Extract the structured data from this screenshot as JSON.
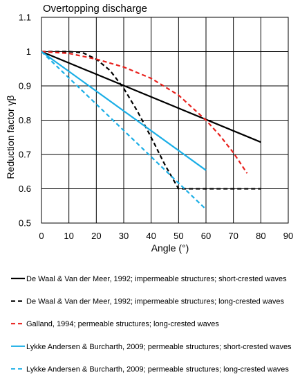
{
  "chart_data": {
    "type": "line",
    "title": "Overtopping discharge",
    "xlabel": "Angle (°)",
    "ylabel": "Reduction factor γβ",
    "xlim": [
      0,
      90
    ],
    "ylim": [
      0.5,
      1.1
    ],
    "xticks": [
      0,
      10,
      20,
      30,
      40,
      50,
      60,
      70,
      80,
      90
    ],
    "yticks": [
      0.5,
      0.6,
      0.7,
      0.8,
      0.9,
      1,
      1.1
    ],
    "grid": true,
    "legend_position": "below",
    "series": [
      {
        "name": "De Waal & Van der Meer, 1992; impermeable structures; short-crested waves",
        "color": "#000000",
        "dash": "solid",
        "x": [
          0,
          80
        ],
        "y": [
          1.0,
          0.736
        ]
      },
      {
        "name": "De Waal & Van der Meer, 1992; impermeable structures; long-crested waves",
        "color": "#000000",
        "dash": "dashed",
        "x": [
          0,
          10,
          15,
          20,
          25,
          30,
          35,
          40,
          45,
          50,
          60,
          80
        ],
        "y": [
          1.0,
          1.0,
          0.997,
          0.978,
          0.945,
          0.893,
          0.826,
          0.75,
          0.67,
          0.6,
          0.6,
          0.6
        ]
      },
      {
        "name": "Galland, 1994; permeable structures; long-crested waves",
        "color": "#e8201c",
        "dash": "dashed",
        "x": [
          0,
          10,
          20,
          30,
          40,
          50,
          60,
          65,
          70,
          75
        ],
        "y": [
          1.0,
          0.995,
          0.978,
          0.955,
          0.922,
          0.873,
          0.8,
          0.756,
          0.705,
          0.645
        ]
      },
      {
        "name": "Lykke Andersen & Burcharth, 2009; permeable structures; short-crested waves",
        "color": "#1aaee6",
        "dash": "solid",
        "x": [
          0,
          60
        ],
        "y": [
          1.0,
          0.654
        ]
      },
      {
        "name": "Lykke Andersen & Burcharth, 2009; permeable structures; long-crested waves",
        "color": "#1aaee6",
        "dash": "dashed",
        "x": [
          0,
          60
        ],
        "y": [
          1.0,
          0.54
        ]
      }
    ]
  }
}
